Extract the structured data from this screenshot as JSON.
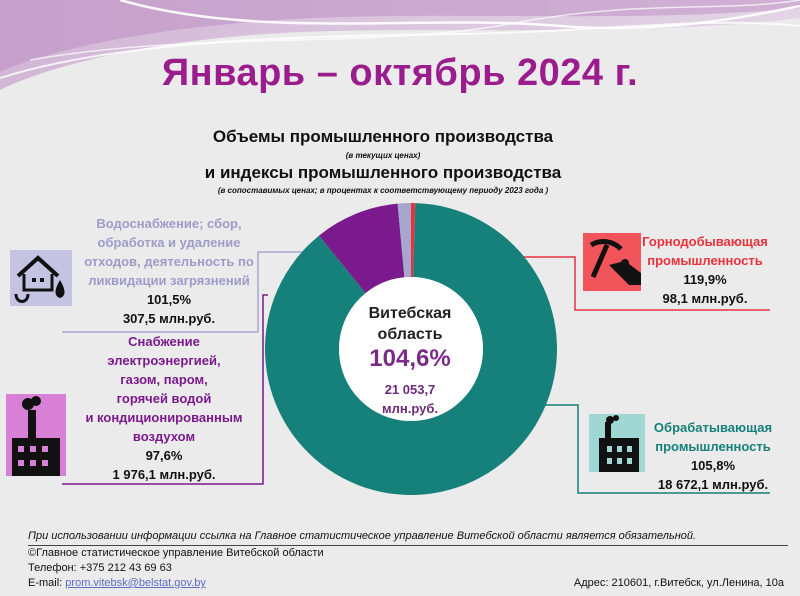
{
  "header": {
    "title": "Январь – октябрь 2024 г."
  },
  "chart_data": {
    "type": "pie",
    "title": "Объемы промышленного производства",
    "title_note": "(в текущих ценах)",
    "subtitle": "и индексы промышленного производства",
    "subtitle_note": "(в сопоставимых ценах; в процентах к соответствующему периоду 2023 года )",
    "center": {
      "region": "Витебская область",
      "index": "104,6%",
      "volume": "21 053,7 млн.руб."
    },
    "slices": [
      {
        "name": "Горнодобывающая промышленность",
        "index": "119,9%",
        "volume_label": "98,1 млн.руб.",
        "value": 98.1,
        "color": "#e8323c"
      },
      {
        "name": "Обрабатывающая промышленность",
        "index": "105,8%",
        "volume_label": "18 672,1 млн.руб.",
        "value": 18672.1,
        "color": "#16807a"
      },
      {
        "name": "Снабжение электроэнергией, газом, паром, горячей водой и кондиционированным воздухом",
        "index": "97,6%",
        "volume_label": "1 976,1 млн.руб.",
        "value": 1976.1,
        "color": "#7a1a8c"
      },
      {
        "name": "Водоснабжение; сбор, обработка и удаление отходов, деятельность по ликвидации загрязнений",
        "index": "101,5%",
        "volume_label": "307,5 млн.руб.",
        "value": 307.5,
        "color": "#a7a6cf"
      }
    ]
  },
  "labels": {
    "mining": {
      "line1": "Горнодобывающая",
      "line2": "промышленность",
      "index": "119,9%",
      "volume": "98,1 млн.руб."
    },
    "manufacturing": {
      "line1": "Обрабатывающая",
      "line2": "промышленность",
      "index": "105,8%",
      "volume": "18 672,1 млн.руб."
    },
    "energy": {
      "line1": "Снабжение",
      "line2": "электроэнергией,",
      "line3": "газом, паром,",
      "line4": "горячей водой",
      "line5": "и кондиционированным",
      "line6": "воздухом",
      "index": "97,6%",
      "volume": "1 976,1 млн.руб."
    },
    "water": {
      "line1": "Водоснабжение; сбор,",
      "line2": "обработка и удаление",
      "line3": "отходов, деятельность по",
      "line4": "ликвидации загрязнений",
      "index": "101,5%",
      "volume": "307,5 млн.руб."
    }
  },
  "footer": {
    "note": "При использовании информации ссылка на Главное статистическое управление Витебской области является обязательной.",
    "copyright": "©Главное статистическое управление Витебской области",
    "phone": "Телефон: +375 212 43 69 63",
    "email_label": "E-mail:",
    "email": "prom.vitebsk@belstat.gov.by",
    "address": "Адрес: 210601, г.Витебск, ул.Ленина, 10а"
  },
  "icons": [
    "house-water-icon",
    "mining-pickaxe-icon",
    "power-plant-icon",
    "factory-icon"
  ]
}
